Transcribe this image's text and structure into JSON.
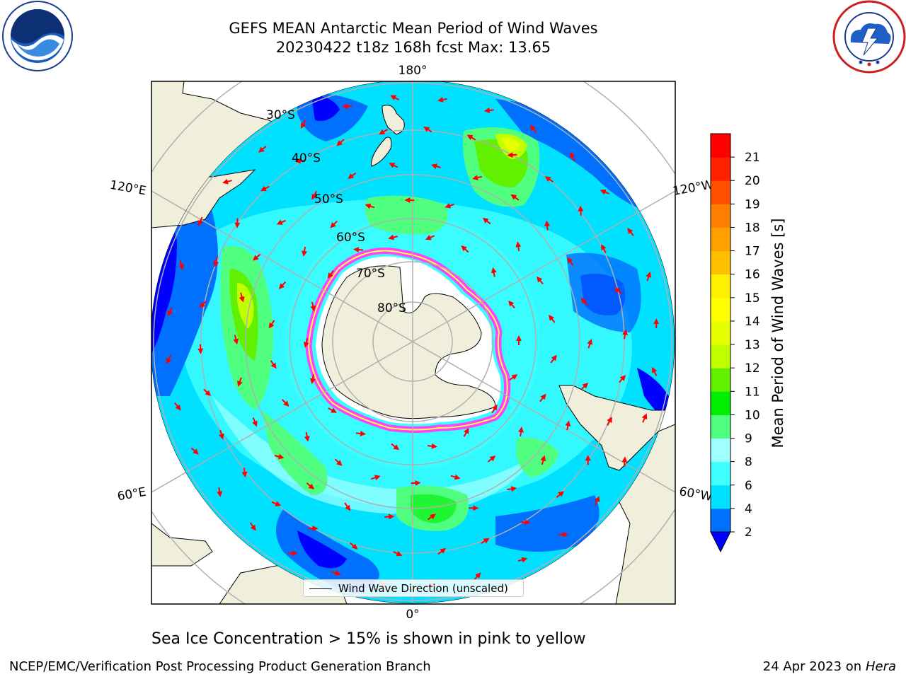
{
  "title": {
    "line1": "GEFS MEAN Antarctic Mean Period of Wind Waves",
    "line2": "20230422 t18z 168h fcst   Max: 13.65"
  },
  "map": {
    "projection": "south-polar-stereographic",
    "lon_labels": [
      "180°",
      "120°E",
      "120°W",
      "60°E",
      "60°W",
      "0°"
    ],
    "lat_labels": [
      "30°S",
      "40°S",
      "50°S",
      "60°S",
      "70°S",
      "80°S"
    ],
    "land_color": "#efefdb",
    "ice_edge_colors": [
      "#ff40ff",
      "#ffff40"
    ]
  },
  "colorbar": {
    "label": "Mean Period of Wind Waves [s]",
    "ticks": [
      "2",
      "4",
      "6",
      "8",
      "9",
      "10",
      "11",
      "12",
      "13",
      "14",
      "15",
      "16",
      "17",
      "18",
      "19",
      "20",
      "21"
    ],
    "colors": [
      "#0070ff",
      "#00e0ff",
      "#40ffff",
      "#a0ffff",
      "#50ff80",
      "#00ee00",
      "#60f000",
      "#c0ff00",
      "#e8ff00",
      "#ffff00",
      "#fff000",
      "#ffc000",
      "#ffa000",
      "#ff8000",
      "#ff5000",
      "#ff2000",
      "#ff0000"
    ],
    "under_color": "#0000ff"
  },
  "legend": {
    "label": "Wind Wave Direction (unscaled)"
  },
  "footnote": "Sea Ice Concentration > 15% is shown in pink to yellow",
  "credit_left": "NCEP/EMC/Verification Post Processing Product Generation Branch",
  "credit_right": {
    "date": "24 Apr 2023 on ",
    "machine": "Hera"
  },
  "logos": {
    "left": "noaa-logo",
    "right": "nws-logo"
  }
}
